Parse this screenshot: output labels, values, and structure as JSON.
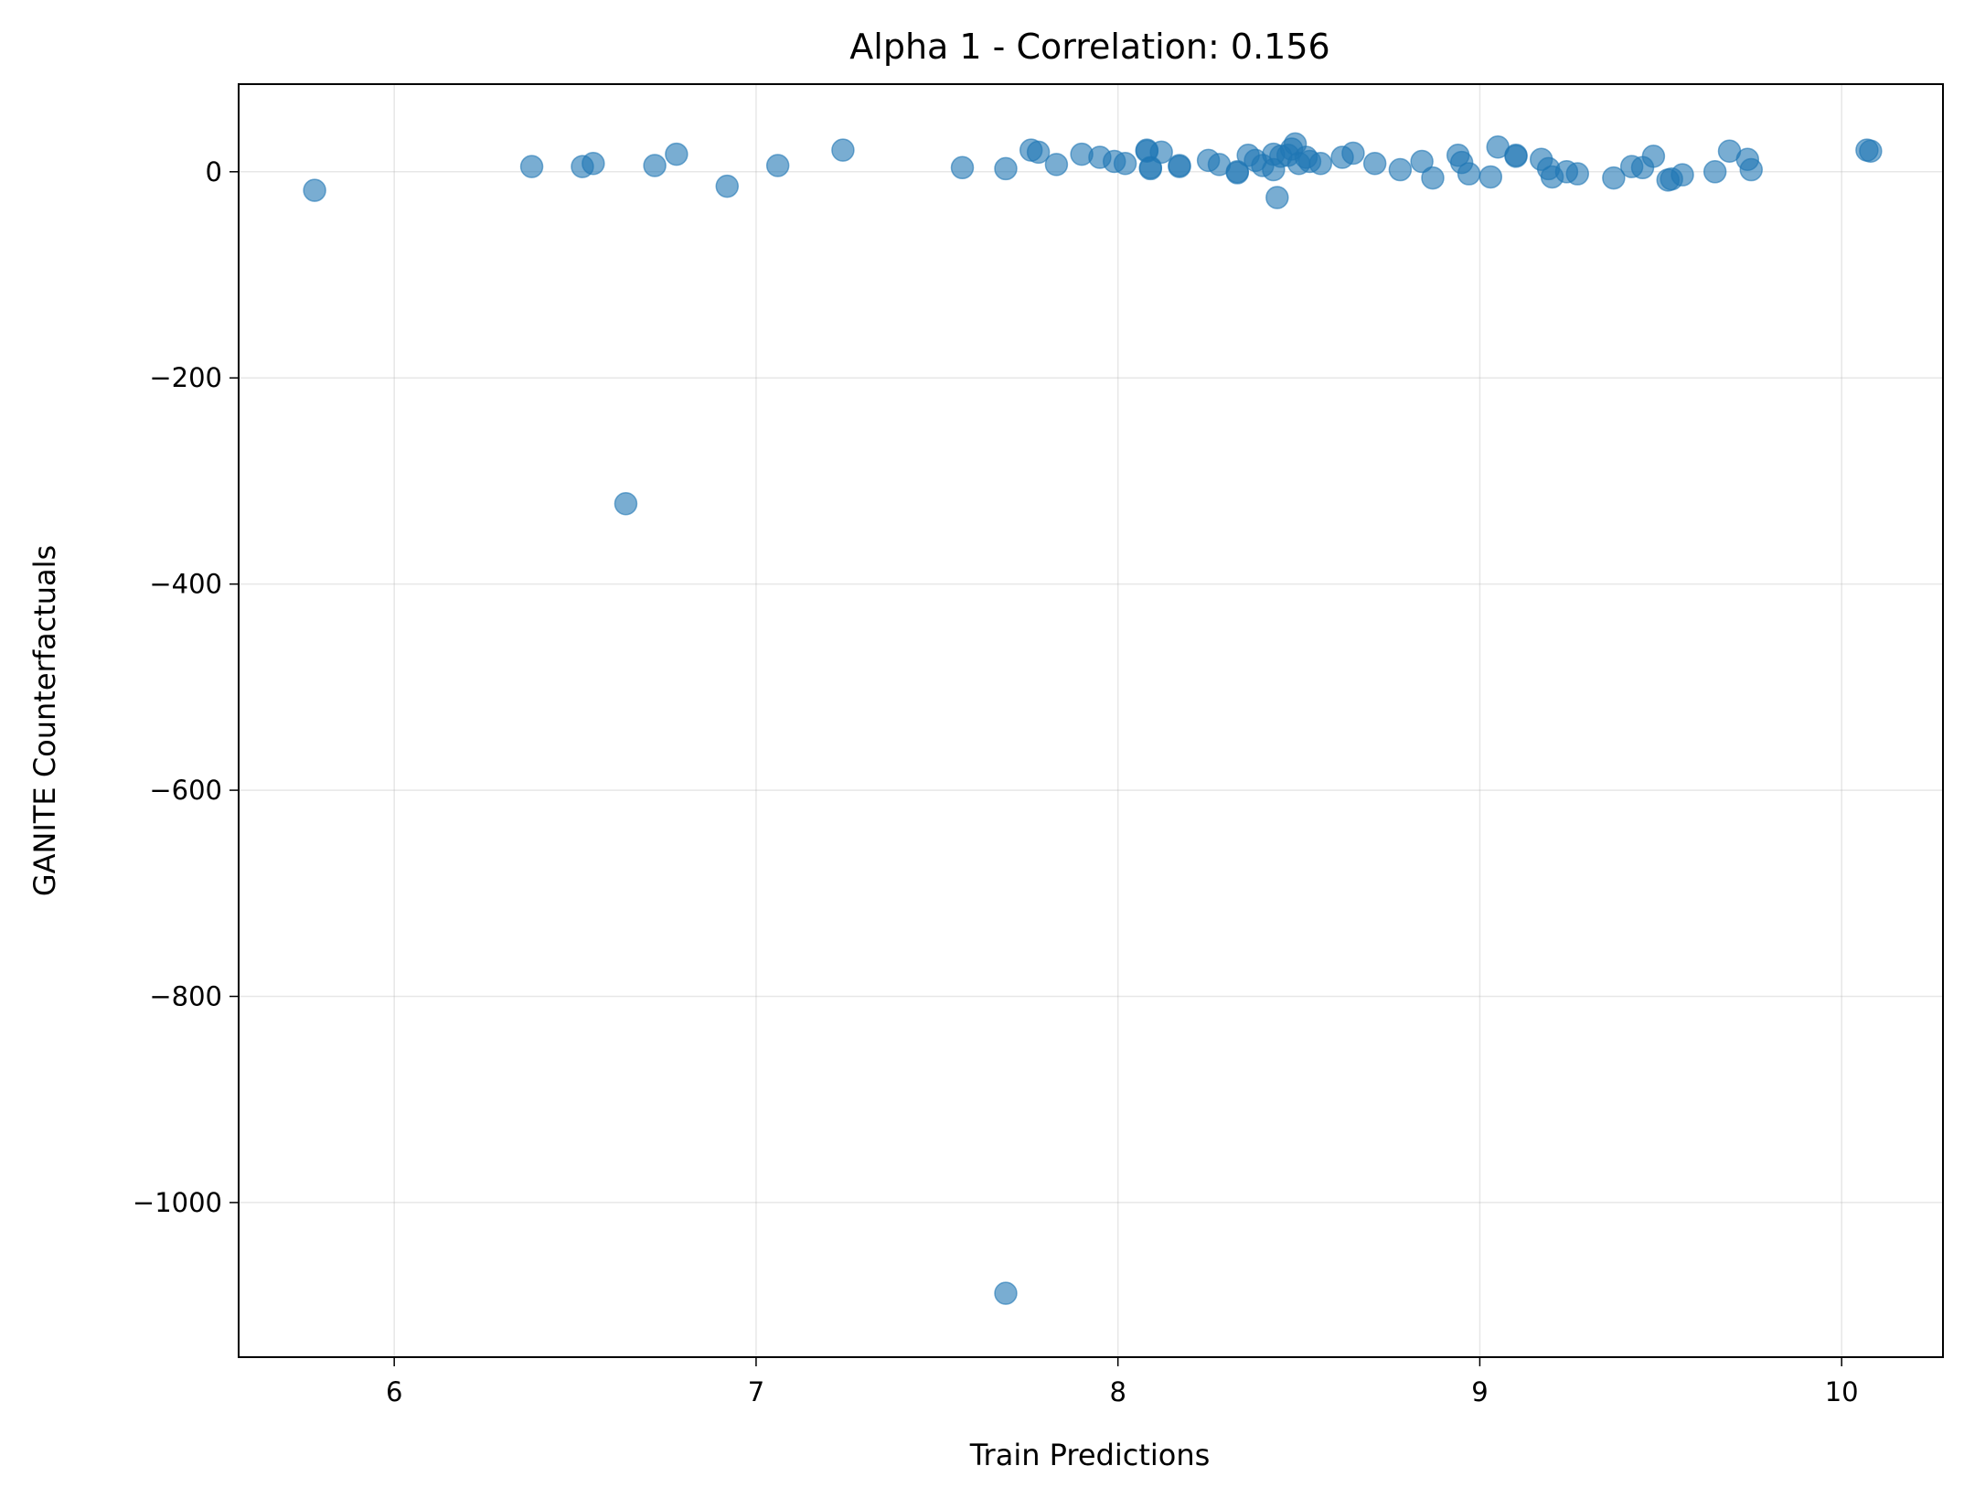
{
  "chart_data": {
    "type": "scatter",
    "title": "Alpha 1 - Correlation: 0.156",
    "xlabel": "Train Predictions",
    "ylabel": "GANITE Counterfactuals",
    "xlim": [
      5.57,
      10.28
    ],
    "ylim": [
      -1150,
      85
    ],
    "xticks": [
      6,
      7,
      8,
      9,
      10
    ],
    "xtick_labels": [
      "6",
      "7",
      "8",
      "9",
      "10"
    ],
    "yticks": [
      0,
      -200,
      -400,
      -600,
      -800,
      -1000
    ],
    "ytick_labels": [
      "0",
      "−200",
      "−400",
      "−600",
      "−800",
      "−1000"
    ],
    "grid": true,
    "color": "#1f77b4",
    "series": [
      {
        "x": [
          5.78,
          6.38,
          6.52,
          6.55,
          6.64,
          6.72,
          6.78,
          6.92,
          7.06,
          7.24,
          7.57,
          7.69,
          7.69,
          7.76,
          7.78,
          7.83,
          7.9,
          7.95,
          7.99,
          8.02,
          8.08,
          8.08,
          8.09,
          8.09,
          8.12,
          8.17,
          8.17,
          8.25,
          8.28,
          8.33,
          8.33,
          8.36,
          8.38,
          8.4,
          8.43,
          8.43,
          8.44,
          8.45,
          8.47,
          8.48,
          8.49,
          8.5,
          8.52,
          8.53,
          8.56,
          8.62,
          8.65,
          8.71,
          8.78,
          8.84,
          8.87,
          8.94,
          8.95,
          8.97,
          9.03,
          9.05,
          9.1,
          9.1,
          9.17,
          9.19,
          9.2,
          9.24,
          9.27,
          9.37,
          9.42,
          9.45,
          9.48,
          9.52,
          9.53,
          9.56,
          9.65,
          9.69,
          9.74,
          9.75,
          10.07,
          10.08
        ],
        "y": [
          -18,
          5,
          5,
          8,
          -322,
          6,
          17,
          -14,
          6,
          21,
          4,
          3,
          -1088,
          21,
          19,
          7,
          17,
          14,
          10,
          8,
          21,
          20,
          3,
          4,
          19,
          6,
          5,
          11,
          7,
          -1,
          0,
          16,
          11,
          6,
          17,
          2,
          -25,
          15,
          16,
          22,
          27,
          8,
          14,
          10,
          8,
          14,
          18,
          8,
          2,
          10,
          -6,
          16,
          9,
          -2,
          -5,
          24,
          16,
          15,
          12,
          3,
          -5,
          0,
          -2,
          -6,
          5,
          4,
          15,
          -8,
          -7,
          -3,
          0,
          20,
          12,
          2,
          21,
          20
        ]
      }
    ]
  }
}
